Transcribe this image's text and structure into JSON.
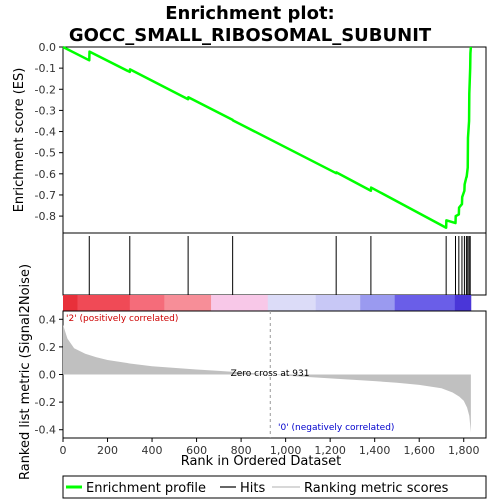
{
  "chart_data": {
    "type": "line",
    "title_line1": "Enrichment plot:",
    "title_line2": "GOCC_SMALL_RIBOSOMAL_SUBUNIT",
    "es_panel": {
      "ylabel": "Enrichment score (ES)",
      "ylim": [
        -0.88,
        0.0
      ],
      "yticks": [
        0.0,
        -0.1,
        -0.2,
        -0.3,
        -0.4,
        -0.5,
        -0.6,
        -0.7,
        -0.8
      ],
      "ytick_labels": [
        "0.0",
        "-0.1",
        "-0.2",
        "-0.3",
        "-0.4",
        "-0.5",
        "-0.6",
        "-0.7",
        "-0.8"
      ],
      "line_color": "#00ff00",
      "x": [
        0,
        118,
        119,
        300,
        301,
        562,
        563,
        762,
        763,
        1227,
        1228,
        1383,
        1384,
        1721,
        1722,
        1763,
        1764,
        1778,
        1779,
        1792,
        1793,
        1803,
        1804,
        1812,
        1813,
        1818,
        1819,
        1824,
        1825,
        1829,
        1830,
        1832
      ],
      "y": [
        0.0,
        -0.063,
        -0.022,
        -0.118,
        -0.106,
        -0.247,
        -0.238,
        -0.345,
        -0.347,
        -0.597,
        -0.593,
        -0.68,
        -0.665,
        -0.855,
        -0.82,
        -0.833,
        -0.8,
        -0.792,
        -0.76,
        -0.743,
        -0.71,
        -0.68,
        -0.65,
        -0.615,
        -0.615,
        -0.57,
        -0.43,
        -0.35,
        -0.22,
        -0.1,
        -0.03,
        0.0
      ]
    },
    "hits": [
      118,
      300,
      562,
      762,
      1227,
      1383,
      1721,
      1763,
      1778,
      1792,
      1803,
      1812,
      1818,
      1824,
      1829
    ],
    "heat_bands": [
      {
        "from": 0,
        "to": 65,
        "color": "#e8303a"
      },
      {
        "from": 65,
        "to": 300,
        "color": "#f04a56"
      },
      {
        "from": 300,
        "to": 455,
        "color": "#f56c7a"
      },
      {
        "from": 455,
        "to": 665,
        "color": "#f78e98"
      },
      {
        "from": 665,
        "to": 920,
        "color": "#f8c8e8"
      },
      {
        "from": 920,
        "to": 1135,
        "color": "#dcdcf8"
      },
      {
        "from": 1135,
        "to": 1335,
        "color": "#c8c8f6"
      },
      {
        "from": 1335,
        "to": 1490,
        "color": "#9a9af0"
      },
      {
        "from": 1490,
        "to": 1760,
        "color": "#6a5ee8"
      },
      {
        "from": 1760,
        "to": 1832,
        "color": "#4a36d8"
      }
    ],
    "metric_panel": {
      "ylabel": "Ranked list metric (Signal2Noise)",
      "ylim": [
        -0.46,
        0.46
      ],
      "yticks": [
        0.4,
        0.2,
        0.0,
        -0.2,
        -0.4
      ],
      "ytick_labels": [
        "0.4",
        "0.2",
        "0.0",
        "-0.2",
        "-0.4"
      ],
      "fill_color": "#c0c0c0",
      "x": [
        0,
        20,
        50,
        100,
        150,
        200,
        300,
        400,
        500,
        600,
        700,
        800,
        900,
        931,
        1000,
        1100,
        1200,
        1300,
        1400,
        1500,
        1600,
        1700,
        1750,
        1780,
        1800,
        1815,
        1825,
        1832
      ],
      "y": [
        0.36,
        0.26,
        0.19,
        0.15,
        0.125,
        0.105,
        0.08,
        0.06,
        0.048,
        0.036,
        0.026,
        0.015,
        0.005,
        0.0,
        -0.008,
        -0.018,
        -0.028,
        -0.038,
        -0.048,
        -0.06,
        -0.075,
        -0.1,
        -0.13,
        -0.16,
        -0.19,
        -0.24,
        -0.3,
        -0.42
      ],
      "zero_cross": 931,
      "zero_cross_label": "Zero cross at 931",
      "pos_label": "'2' (positively correlated)",
      "neg_label": "'0' (negatively correlated)",
      "pos_color": "#cc0000",
      "neg_color": "#0000cc"
    },
    "xlabel": "Rank in Ordered Dataset",
    "xlim": [
      0,
      1900
    ],
    "xticks": [
      0,
      200,
      400,
      600,
      800,
      1000,
      1200,
      1400,
      1600,
      1800
    ],
    "xtick_labels": [
      "0",
      "200",
      "400",
      "600",
      "800",
      "1,000",
      "1,200",
      "1,400",
      "1,600",
      "1,800"
    ],
    "legend": [
      {
        "label": "Enrichment profile",
        "color": "#00ff00",
        "style": "thick"
      },
      {
        "label": "Hits",
        "color": "#000000",
        "style": "thin"
      },
      {
        "label": "Ranking metric scores",
        "color": "#c0c0c0",
        "style": "thin"
      }
    ]
  }
}
